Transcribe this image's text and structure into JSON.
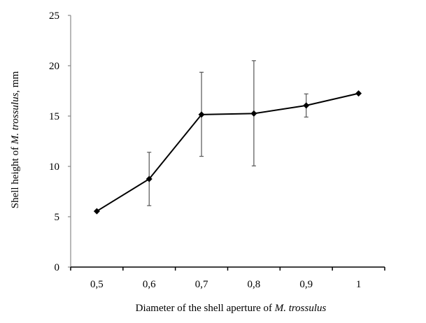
{
  "chart_data": {
    "type": "line",
    "title": "",
    "xlabel": "Diameter of the shell aperture of ",
    "xlabel_italic": "M. trossulus",
    "ylabel": "Shell height of ",
    "ylabel_italic": "M. trossulus",
    "ylabel_suffix": ", mm",
    "categories": [
      "0,5",
      "0,6",
      "0,7",
      "0,8",
      "0,9",
      "1"
    ],
    "series": [
      {
        "name": "Shell height",
        "values": [
          5.55,
          8.75,
          15.15,
          15.25,
          16.05,
          17.25
        ],
        "error_upper": [
          null,
          11.4,
          19.35,
          20.5,
          17.2,
          null
        ],
        "error_lower": [
          null,
          6.1,
          11.0,
          10.05,
          14.9,
          null
        ],
        "marker": "diamond",
        "color": "#000000"
      }
    ],
    "ylim": [
      0,
      25
    ],
    "yticks": [
      "0",
      "5",
      "10",
      "15",
      "20",
      "25"
    ],
    "grid": false,
    "legend": "none"
  }
}
